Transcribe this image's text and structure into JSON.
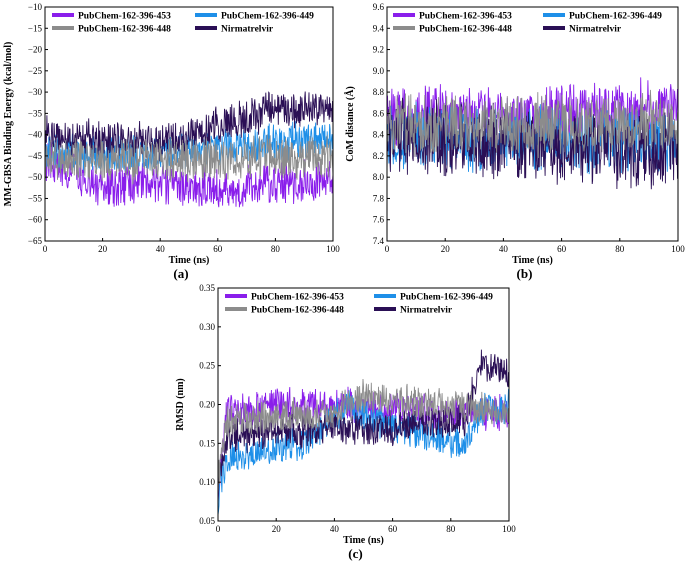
{
  "series_names": [
    "PubChem-162-396-453",
    "PubChem-162-396-449",
    "PubChem-162-396-448",
    "Nirmatrelvir"
  ],
  "colors": {
    "PubChem-162-396-453": "#8A1EEB",
    "PubChem-162-396-449": "#1E8FE8",
    "PubChem-162-396-448": "#8C8C8C",
    "Nirmatrelvir": "#2A0F55"
  },
  "chart_data": [
    {
      "type": "line",
      "panel": "(a)",
      "xlabel": "Time (ns)",
      "ylabel": "MM-GBSA Binding Energy (kcal/mol)",
      "xlim": [
        0,
        100
      ],
      "ylim": [
        -65,
        -10
      ],
      "xticks": [
        0,
        20,
        40,
        60,
        80,
        100
      ],
      "yticks": [
        -65,
        -60,
        -55,
        -50,
        -45,
        -40,
        -35,
        -30,
        -25,
        -20,
        -15,
        -10
      ],
      "legend": "top",
      "series": [
        {
          "name": "PubChem-162-396-453",
          "mean": [
            [
              0,
              -46
            ],
            [
              20,
              -52
            ],
            [
              40,
              -51
            ],
            [
              60,
              -53
            ],
            [
              80,
              -51
            ],
            [
              100,
              -51
            ]
          ],
          "amp": 5.5
        },
        {
          "name": "PubChem-162-396-449",
          "mean": [
            [
              0,
              -44
            ],
            [
              20,
              -45
            ],
            [
              40,
              -44
            ],
            [
              60,
              -43
            ],
            [
              80,
              -42
            ],
            [
              100,
              -41
            ]
          ],
          "amp": 5
        },
        {
          "name": "Nirmatrelvir",
          "mean": [
            [
              0,
              -40
            ],
            [
              40,
              -42
            ],
            [
              50,
              -40
            ],
            [
              60,
              -38
            ],
            [
              80,
              -34
            ],
            [
              100,
              -34
            ]
          ],
          "amp": 5
        },
        {
          "name": "PubChem-162-396-448",
          "mean": [
            [
              0,
              -46
            ],
            [
              50,
              -46
            ],
            [
              100,
              -45
            ]
          ],
          "amp": 6
        }
      ]
    },
    {
      "type": "line",
      "panel": "(b)",
      "xlabel": "Time (ns)",
      "ylabel": "CoM distance (Å)",
      "xlim": [
        0,
        100
      ],
      "ylim": [
        7.4,
        9.6
      ],
      "xticks": [
        0,
        20,
        40,
        60,
        80,
        100
      ],
      "yticks": [
        7.4,
        7.6,
        7.8,
        8.0,
        8.2,
        8.4,
        8.6,
        8.8,
        9.0,
        9.2,
        9.4,
        9.6
      ],
      "legend": "top",
      "series": [
        {
          "name": "PubChem-162-396-453",
          "mean": [
            [
              0,
              8.6
            ],
            [
              50,
              8.55
            ],
            [
              100,
              8.65
            ]
          ],
          "amp": 0.32
        },
        {
          "name": "PubChem-162-396-449",
          "mean": [
            [
              0,
              8.4
            ],
            [
              50,
              8.35
            ],
            [
              100,
              8.35
            ]
          ],
          "amp": 0.35
        },
        {
          "name": "Nirmatrelvir",
          "mean": [
            [
              0,
              8.4
            ],
            [
              50,
              8.3
            ],
            [
              100,
              8.25
            ]
          ],
          "amp": 0.4
        },
        {
          "name": "PubChem-162-396-448",
          "mean": [
            [
              0,
              8.5
            ],
            [
              50,
              8.5
            ],
            [
              100,
              8.5
            ]
          ],
          "amp": 0.33
        }
      ]
    },
    {
      "type": "line",
      "panel": "(c)",
      "xlabel": "Time (ns)",
      "ylabel": "RMSD (nm)",
      "xlim": [
        0,
        100
      ],
      "ylim": [
        0.05,
        0.35
      ],
      "xticks": [
        0,
        20,
        40,
        60,
        80,
        100
      ],
      "yticks": [
        0.05,
        0.1,
        0.15,
        0.2,
        0.25,
        0.3,
        0.35
      ],
      "legend": "top",
      "series": [
        {
          "name": "PubChem-162-396-453",
          "mean": [
            [
              0,
              0.09
            ],
            [
              3,
              0.19
            ],
            [
              20,
              0.2
            ],
            [
              50,
              0.2
            ],
            [
              80,
              0.19
            ],
            [
              100,
              0.19
            ]
          ],
          "amp": 0.025
        },
        {
          "name": "PubChem-162-396-449",
          "mean": [
            [
              0,
              0.08
            ],
            [
              3,
              0.13
            ],
            [
              30,
              0.15
            ],
            [
              45,
              0.2
            ],
            [
              60,
              0.17
            ],
            [
              85,
              0.15
            ],
            [
              90,
              0.19
            ],
            [
              100,
              0.2
            ]
          ],
          "amp": 0.025
        },
        {
          "name": "Nirmatrelvir",
          "mean": [
            [
              0,
              0.09
            ],
            [
              3,
              0.16
            ],
            [
              40,
              0.17
            ],
            [
              60,
              0.17
            ],
            [
              85,
              0.18
            ],
            [
              90,
              0.25
            ],
            [
              100,
              0.24
            ]
          ],
          "amp": 0.025
        },
        {
          "name": "PubChem-162-396-448",
          "mean": [
            [
              0,
              0.1
            ],
            [
              3,
              0.18
            ],
            [
              40,
              0.19
            ],
            [
              50,
              0.21
            ],
            [
              100,
              0.19
            ]
          ],
          "amp": 0.025
        }
      ]
    }
  ]
}
